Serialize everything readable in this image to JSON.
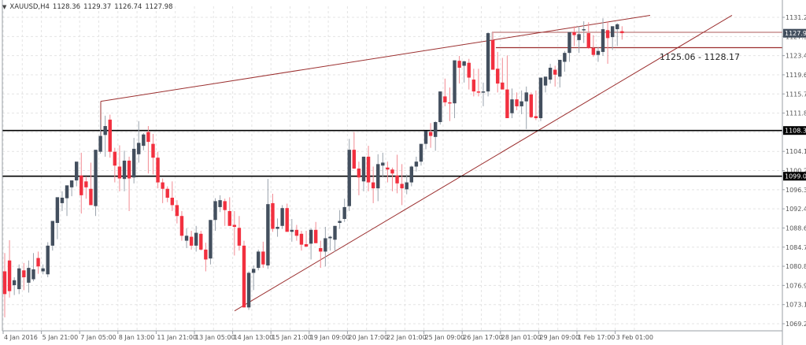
{
  "header": {
    "symbol": "XAUUSD,H4",
    "open": "1128.36",
    "high": "1129.37",
    "low": "1126.74",
    "close": "1127.98"
  },
  "colors": {
    "bull": "#434f5e",
    "bear": "#f2303f",
    "bull_wick": "#9aa3ad",
    "bear_wick": "#f28a92",
    "trendline": "#9b2f2f",
    "level_line": "#000000",
    "box_line": "#9b2f2f",
    "grid": "#e4e4e4",
    "axis": "#9a9fa6",
    "current_tag": "#434f5e",
    "level_tag": "#000000"
  },
  "chart_data": {
    "type": "candlestick",
    "title": "XAUUSD,H4",
    "ylim": [
      1069.2,
      1131.2
    ],
    "y_ticks": [
      "1131.20",
      "1127.30",
      "1123.40",
      "1119.60",
      "1115.70",
      "1111.80",
      "1108.00",
      "1104.10",
      "1100.20",
      "1096.30",
      "1092.40",
      "1088.60",
      "1084.70",
      "1080.80",
      "1076.90",
      "1073.10",
      "1069.20"
    ],
    "x_ticks": [
      "4 Jan 2016",
      "5 Jan 21:00",
      "7 Jan 05:00",
      "8 Jan 13:00",
      "11 Jan 21:00",
      "13 Jan 05:00",
      "14 Jan 13:00",
      "15 Jan 21:00",
      "19 Jan 09:00",
      "20 Jan 17:00",
      "22 Jan 01:00",
      "25 Jan 09:00",
      "26 Jan 17:00",
      "28 Jan 01:00",
      "29 Jan 09:00",
      "1 Feb 17:00",
      "3 Feb 01:00"
    ],
    "current_price": "1127.98",
    "horizontal_levels": [
      {
        "price": 1108.3,
        "label": "1108.30"
      },
      {
        "price": 1099.05,
        "label": "1099.05"
      }
    ],
    "range_box": {
      "low": 1125.06,
      "high": 1128.17,
      "label": "1125.06 - 1128.17"
    },
    "trendlines": [
      {
        "name": "upper-channel",
        "from": [
          128,
          1114.2
        ],
        "to": [
          826,
          1131.6
        ]
      },
      {
        "name": "lower-support",
        "from": [
          298,
          1071.8
        ],
        "to": [
          930,
          1131.6
        ]
      }
    ],
    "candles": [
      [
        1079.8,
        1083.5,
        1070.5,
        1075.2
      ],
      [
        1082.0,
        1086.1,
        1074.5,
        1075.8
      ],
      [
        1077.0,
        1078.6,
        1075.0,
        1078.0
      ],
      [
        1076.2,
        1081.2,
        1075.2,
        1080.4
      ],
      [
        1080.0,
        1081.5,
        1076.0,
        1078.6
      ],
      [
        1077.5,
        1082.0,
        1075.5,
        1080.5
      ],
      [
        1078.2,
        1083.5,
        1077.8,
        1080.2
      ],
      [
        1082.5,
        1083.8,
        1079.3,
        1080.8
      ],
      [
        1079.8,
        1081.2,
        1079.2,
        1080.4
      ],
      [
        1079.2,
        1085.7,
        1078.6,
        1085.0
      ],
      [
        1085.0,
        1088.6,
        1084.0,
        1090.0
      ],
      [
        1089.6,
        1094.2,
        1086.3,
        1094.8
      ],
      [
        1093.6,
        1096.0,
        1092.0,
        1094.7
      ],
      [
        1094.6,
        1096.0,
        1091.0,
        1097.2
      ],
      [
        1096.8,
        1097.8,
        1095.0,
        1098.2
      ],
      [
        1098.2,
        1100.0,
        1097.0,
        1102.0
      ],
      [
        1099.2,
        1103.8,
        1091.5,
        1095.2
      ],
      [
        1098.0,
        1099.0,
        1094.5,
        1096.8
      ],
      [
        1096.5,
        1101.8,
        1093.8,
        1093.2
      ],
      [
        1093.0,
        1104.0,
        1091.0,
        1104.4
      ],
      [
        1104.0,
        1110.5,
        1103.6,
        1107.2
      ],
      [
        1107.4,
        1111.3,
        1103.0,
        1109.2
      ],
      [
        1110.5,
        1111.5,
        1102.8,
        1104.0
      ],
      [
        1104.0,
        1104.8,
        1097.8,
        1101.2
      ],
      [
        1101.0,
        1105.3,
        1096.0,
        1098.6
      ],
      [
        1098.5,
        1104.2,
        1096.0,
        1102.2
      ],
      [
        1102.2,
        1103.0,
        1092.0,
        1098.6
      ],
      [
        1098.8,
        1106.8,
        1097.6,
        1104.6
      ],
      [
        1103.5,
        1110.2,
        1101.8,
        1105.8
      ],
      [
        1105.2,
        1107.8,
        1104.3,
        1107.5
      ],
      [
        1108.0,
        1109.2,
        1099.6,
        1106.0
      ],
      [
        1105.6,
        1107.6,
        1099.4,
        1102.8
      ],
      [
        1102.8,
        1104.0,
        1096.6,
        1097.8
      ],
      [
        1097.8,
        1098.6,
        1093.6,
        1096.5
      ],
      [
        1096.5,
        1097.0,
        1093.8,
        1094.7
      ],
      [
        1094.7,
        1098.0,
        1092.0,
        1093.2
      ],
      [
        1093.2,
        1094.2,
        1089.5,
        1091.0
      ],
      [
        1091.0,
        1092.0,
        1086.0,
        1087.0
      ],
      [
        1086.0,
        1088.5,
        1084.5,
        1087.0
      ],
      [
        1086.8,
        1088.0,
        1084.2,
        1085.0
      ],
      [
        1085.0,
        1089.0,
        1083.8,
        1087.6
      ],
      [
        1087.4,
        1088.0,
        1084.0,
        1084.2
      ],
      [
        1084.2,
        1085.6,
        1079.8,
        1082.2
      ],
      [
        1082.4,
        1090.2,
        1081.2,
        1090.2
      ],
      [
        1090.2,
        1094.6,
        1088.0,
        1094.0
      ],
      [
        1092.8,
        1095.2,
        1091.8,
        1094.2
      ],
      [
        1094.0,
        1094.5,
        1089.0,
        1092.2
      ],
      [
        1092.0,
        1094.8,
        1089.0,
        1089.0
      ],
      [
        1089.2,
        1092.0,
        1083.0,
        1088.8
      ],
      [
        1088.6,
        1091.0,
        1084.0,
        1085.0
      ],
      [
        1085.0,
        1086.0,
        1072.5,
        1072.5
      ],
      [
        1072.5,
        1079.8,
        1072.0,
        1079.5
      ],
      [
        1079.5,
        1081.0,
        1076.0,
        1080.3
      ],
      [
        1080.5,
        1084.2,
        1080.0,
        1083.8
      ],
      [
        1083.8,
        1085.8,
        1080.5,
        1081.2
      ],
      [
        1081.0,
        1098.5,
        1080.3,
        1093.4
      ],
      [
        1093.6,
        1095.5,
        1087.8,
        1088.4
      ],
      [
        1088.4,
        1090.5,
        1086.8,
        1088.8
      ],
      [
        1089.0,
        1093.2,
        1088.4,
        1092.6
      ],
      [
        1092.6,
        1093.5,
        1087.8,
        1087.8
      ],
      [
        1087.8,
        1090.4,
        1085.8,
        1088.2
      ],
      [
        1088.2,
        1089.2,
        1086.0,
        1087.0
      ],
      [
        1087.4,
        1088.0,
        1084.0,
        1085.2
      ],
      [
        1085.3,
        1088.0,
        1085.0,
        1084.8
      ],
      [
        1085.4,
        1088.5,
        1082.2,
        1088.2
      ],
      [
        1088.2,
        1089.8,
        1085.5,
        1085.5
      ],
      [
        1084.5,
        1086.0,
        1080.5,
        1083.8
      ],
      [
        1083.8,
        1088.8,
        1080.8,
        1086.5
      ],
      [
        1086.5,
        1087.0,
        1084.0,
        1086.8
      ],
      [
        1086.2,
        1089.0,
        1083.8,
        1089.0
      ],
      [
        1089.6,
        1092.2,
        1088.4,
        1090.0
      ],
      [
        1090.4,
        1094.5,
        1089.8,
        1092.8
      ],
      [
        1093.0,
        1106.6,
        1092.0,
        1104.4
      ],
      [
        1104.4,
        1108.0,
        1100.5,
        1100.6
      ],
      [
        1100.6,
        1102.0,
        1095.2,
        1098.8
      ],
      [
        1098.0,
        1103.0,
        1096.0,
        1103.0
      ],
      [
        1103.0,
        1105.2,
        1096.0,
        1097.8
      ],
      [
        1097.8,
        1101.0,
        1093.6,
        1096.6
      ],
      [
        1096.6,
        1103.5,
        1094.0,
        1101.5
      ],
      [
        1101.2,
        1103.8,
        1098.8,
        1101.8
      ],
      [
        1100.8,
        1102.0,
        1097.8,
        1100.4
      ],
      [
        1100.4,
        1100.8,
        1096.0,
        1099.6
      ],
      [
        1099.2,
        1103.4,
        1095.6,
        1097.6
      ],
      [
        1097.5,
        1101.5,
        1093.2,
        1096.6
      ],
      [
        1096.4,
        1099.4,
        1095.4,
        1097.8
      ],
      [
        1097.8,
        1101.2,
        1097.0,
        1101.0
      ],
      [
        1101.0,
        1103.0,
        1100.0,
        1102.0
      ],
      [
        1102.0,
        1104.5,
        1101.2,
        1105.6
      ],
      [
        1105.6,
        1107.5,
        1104.5,
        1108.2
      ],
      [
        1108.0,
        1109.8,
        1104.8,
        1107.2
      ],
      [
        1107.0,
        1110.2,
        1104.2,
        1110.0
      ],
      [
        1110.0,
        1113.5,
        1109.5,
        1116.2
      ],
      [
        1115.2,
        1118.8,
        1113.2,
        1114.0
      ],
      [
        1114.0,
        1117.0,
        1110.2,
        1113.8
      ],
      [
        1113.8,
        1116.4,
        1110.8,
        1122.5
      ],
      [
        1122.4,
        1123.4,
        1117.8,
        1121.0
      ],
      [
        1121.4,
        1122.4,
        1118.0,
        1122.3
      ],
      [
        1122.0,
        1122.8,
        1116.6,
        1119.0
      ],
      [
        1118.6,
        1120.8,
        1115.2,
        1116.2
      ],
      [
        1116.2,
        1120.8,
        1115.2,
        1116.0
      ],
      [
        1116.0,
        1118.0,
        1113.2,
        1116.2
      ],
      [
        1116.2,
        1128.2,
        1115.2,
        1128.0
      ],
      [
        1126.6,
        1128.2,
        1120.6,
        1120.6
      ],
      [
        1120.8,
        1124.2,
        1116.0,
        1117.8
      ],
      [
        1118.0,
        1123.0,
        1116.8,
        1116.6
      ],
      [
        1116.6,
        1123.5,
        1114.2,
        1110.8
      ],
      [
        1111.8,
        1116.8,
        1110.8,
        1114.6
      ],
      [
        1114.6,
        1116.0,
        1112.4,
        1113.2
      ],
      [
        1113.2,
        1116.4,
        1111.6,
        1114.2
      ],
      [
        1114.2,
        1117.2,
        1108.6,
        1116.0
      ],
      [
        1115.6,
        1116.0,
        1110.8,
        1111.0
      ],
      [
        1111.2,
        1116.4,
        1110.4,
        1110.8
      ],
      [
        1110.8,
        1117.6,
        1110.2,
        1119.0
      ],
      [
        1117.4,
        1118.8,
        1116.0,
        1119.2
      ],
      [
        1118.6,
        1121.8,
        1117.8,
        1121.0
      ],
      [
        1120.6,
        1121.4,
        1117.2,
        1119.6
      ],
      [
        1119.2,
        1121.6,
        1117.0,
        1122.6
      ],
      [
        1122.2,
        1124.4,
        1120.2,
        1124.0
      ],
      [
        1124.0,
        1126.8,
        1122.2,
        1128.2
      ],
      [
        1128.2,
        1129.4,
        1125.4,
        1127.6
      ],
      [
        1126.6,
        1129.4,
        1124.0,
        1127.8
      ],
      [
        1128.8,
        1130.4,
        1126.0,
        1128.8
      ],
      [
        1128.0,
        1130.2,
        1124.8,
        1125.0
      ],
      [
        1125.0,
        1127.6,
        1123.2,
        1123.6
      ],
      [
        1123.6,
        1125.2,
        1122.2,
        1124.4
      ],
      [
        1124.2,
        1131.0,
        1123.4,
        1128.8
      ],
      [
        1128.6,
        1130.4,
        1121.8,
        1127.0
      ],
      [
        1127.2,
        1129.2,
        1124.6,
        1129.4
      ],
      [
        1128.8,
        1130.0,
        1125.4,
        1129.8
      ],
      [
        1128.4,
        1129.4,
        1126.7,
        1128.0
      ]
    ]
  }
}
